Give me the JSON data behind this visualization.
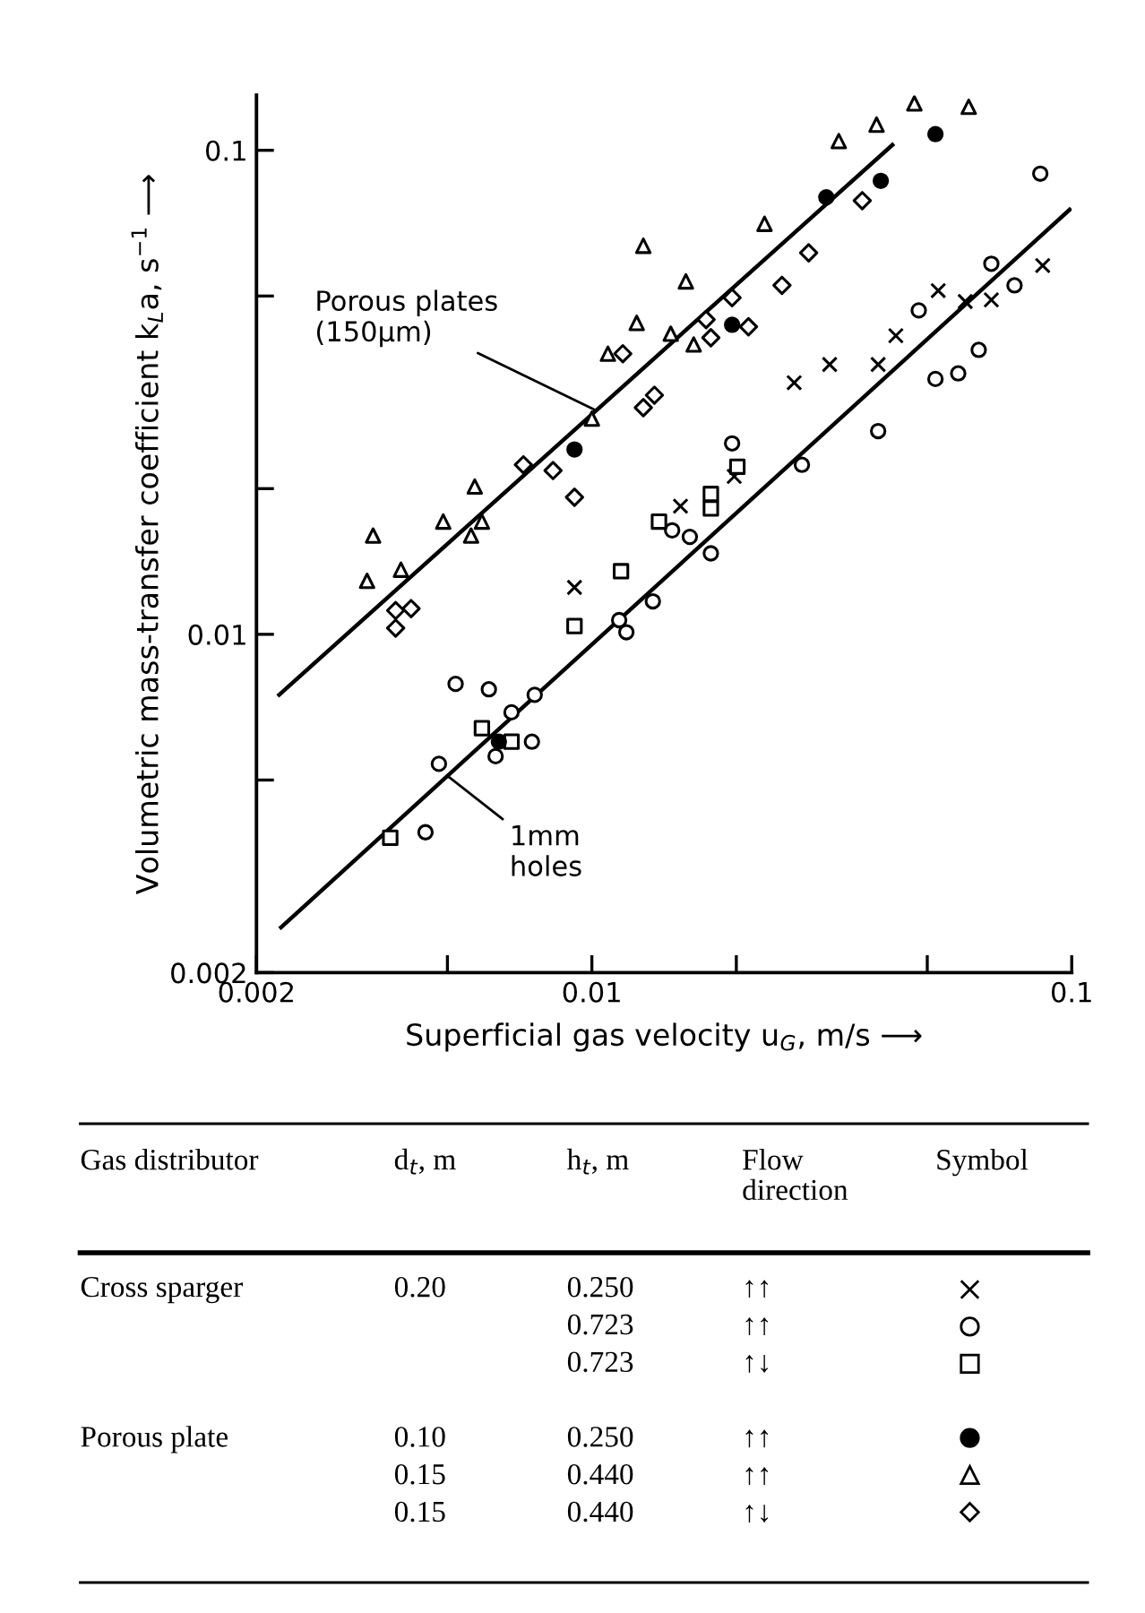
{
  "chart_data": {
    "type": "scatter",
    "xlabel": "Superficial gas velocity u$_{G}$, m/s ⟶",
    "ylabel": "Volumetric mass-transfer coefficient k$_{L}$a, s$^{−1}$ ⟶",
    "log": "xy",
    "xlim": [
      0.002,
      0.1
    ],
    "ylim": [
      0.002,
      0.13
    ],
    "xticks": [
      0.002,
      {
        "value": 0.005,
        "label": null
      },
      0.01,
      {
        "value": 0.02,
        "label": null
      },
      {
        "value": 0.05,
        "label": null
      },
      0.1
    ],
    "yticks": [
      0.002,
      {
        "value": 0.005,
        "label": null
      },
      0.01,
      {
        "value": 0.02,
        "label": null
      },
      {
        "value": 0.05,
        "label": null
      },
      0.1
    ],
    "grid": false,
    "legend": false,
    "series": [
      {
        "marker": "cross",
        "color": "#000000",
        "x": [
          0.0092,
          0.0264,
          0.0313,
          0.0395,
          0.043,
          0.0527,
          0.06,
          0.068,
          0.087,
          0.0153,
          0.0198
        ],
        "values": [
          0.0125,
          0.0331,
          0.0361,
          0.0361,
          0.0414,
          0.0513,
          0.0487,
          0.0491,
          0.0578,
          0.0184,
          0.0212
        ]
      },
      {
        "marker": "circle",
        "color": "#000000",
        "x": [
          0.086,
          0.068,
          0.076,
          0.048,
          0.064,
          0.058,
          0.052,
          0.0395,
          0.0274,
          0.0196,
          0.0177,
          0.016,
          0.0147,
          0.0134,
          0.0114,
          0.0118,
          0.0052,
          0.0061,
          0.0076,
          0.0068,
          0.0075,
          0.0063,
          0.0048,
          0.0045
        ],
        "values": [
          0.0895,
          0.0583,
          0.0526,
          0.0467,
          0.0387,
          0.0346,
          0.0337,
          0.0263,
          0.0224,
          0.0248,
          0.0147,
          0.0159,
          0.0164,
          0.0117,
          0.0107,
          0.0101,
          0.0079,
          0.0077,
          0.0075,
          0.0069,
          0.006,
          0.0056,
          0.0054,
          0.0039
        ]
      },
      {
        "marker": "square",
        "color": "#000000",
        "x": [
          0.0038,
          0.0059,
          0.0068,
          0.0092,
          0.0115,
          0.0138,
          0.0177,
          0.0177,
          0.0201
        ],
        "values": [
          0.0038,
          0.0064,
          0.006,
          0.0104,
          0.0135,
          0.0171,
          0.0195,
          0.0182,
          0.0222
        ]
      },
      {
        "marker": "dot",
        "color": "#000000",
        "x": [
          0.0092,
          0.0196,
          0.0308,
          0.04,
          0.052,
          0.0064
        ],
        "values": [
          0.0241,
          0.0436,
          0.08,
          0.0865,
          0.108,
          0.006
        ]
      },
      {
        "marker": "triangle",
        "color": "#000000",
        "x": [
          0.0035,
          0.0034,
          0.004,
          0.0049,
          0.0057,
          0.0056,
          0.0059,
          0.01,
          0.0108,
          0.0124,
          0.0128,
          0.0157,
          0.0146,
          0.0163,
          0.0229,
          0.0327,
          0.0392,
          0.047,
          0.061
        ],
        "values": [
          0.016,
          0.0129,
          0.0136,
          0.0171,
          0.0202,
          0.016,
          0.0171,
          0.0279,
          0.038,
          0.044,
          0.0635,
          0.0536,
          0.0418,
          0.0397,
          0.0705,
          0.1045,
          0.113,
          0.125,
          0.123
        ]
      },
      {
        "marker": "diamond",
        "color": "#000000",
        "x": [
          0.0116,
          0.0128,
          0.0135,
          0.0072,
          0.0083,
          0.0092,
          0.0039,
          0.0042,
          0.0039,
          0.0212,
          0.0177,
          0.0173,
          0.0249,
          0.0283,
          0.0366,
          0.0196
        ],
        "values": [
          0.038,
          0.0294,
          0.0312,
          0.0224,
          0.0218,
          0.0192,
          0.0112,
          0.0113,
          0.0103,
          0.0432,
          0.041,
          0.0447,
          0.0526,
          0.0614,
          0.0787,
          0.0496
        ]
      },
      {
        "type": "line",
        "color": "#000000",
        "marker": "none",
        "x": [
          0.00223,
          0.0423
        ],
        "values": [
          0.0075,
          0.1026
        ]
      },
      {
        "type": "line",
        "color": "#000000",
        "marker": "none",
        "x": [
          0.00225,
          0.099
        ],
        "values": [
          0.00248,
          0.0754
        ]
      }
    ],
    "annotations": [
      {
        "text": "Porous plates\n(150μm)",
        "x": 0.0102,
        "y": 0.029
      },
      {
        "text": "1mm\nholes",
        "x": 0.005,
        "y": 0.0051
      },
      "Gas distributor",
      "d$_{t}$, m",
      "h$_{t}$, m",
      "Flow\ndirection",
      "Symbol",
      "Cross sparger\n\n\n\nPorous plate",
      "0.20\n\n\n\n0.10\n0.15\n0.15",
      "0.250\n0.723\n0.723\n\n0.250\n0.440\n0.440",
      "↑↑\n↑↑\n↑↓\n\n↑↑\n↑↑\n↑↓"
    ]
  }
}
